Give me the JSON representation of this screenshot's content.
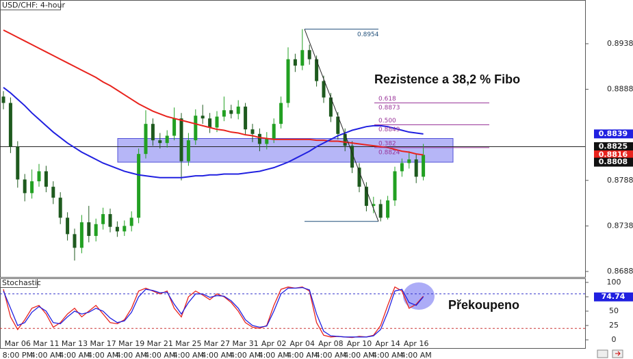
{
  "chart_data": [
    {
      "type": "candlestick",
      "title": "USD/CHF: 4-hour",
      "open": [
        0.888,
        0.8873,
        0.8825,
        0.8789,
        0.8774,
        0.8787,
        0.8798,
        0.8781,
        0.8769,
        0.8747,
        0.8729,
        0.8714,
        0.8742,
        0.8727,
        0.874,
        0.8751,
        0.8737,
        0.8732,
        0.8738,
        0.8747,
        0.8817,
        0.885,
        0.8832,
        0.8829,
        0.8837,
        0.8856,
        0.8809,
        0.8832,
        0.8859,
        0.8856,
        0.8846,
        0.8858,
        0.8865,
        0.8861,
        0.8869,
        0.8844,
        0.8839,
        0.8828,
        0.8834,
        0.885,
        0.8873,
        0.8921,
        0.8914,
        0.8931,
        0.8921,
        0.8897,
        0.8879,
        0.8858,
        0.8839,
        0.8826,
        0.8802,
        0.8781,
        0.876,
        0.8762,
        0.8747,
        0.8766,
        0.8798,
        0.8807,
        0.8811,
        0.8792
      ],
      "high": [
        0.8886,
        0.8879,
        0.8831,
        0.8795,
        0.88,
        0.8806,
        0.8804,
        0.8787,
        0.8775,
        0.8753,
        0.8735,
        0.875,
        0.876,
        0.8746,
        0.8758,
        0.8757,
        0.8743,
        0.8744,
        0.8754,
        0.8823,
        0.8865,
        0.8856,
        0.884,
        0.8843,
        0.8868,
        0.8862,
        0.884,
        0.8866,
        0.8871,
        0.8862,
        0.8864,
        0.888,
        0.8871,
        0.8876,
        0.8873,
        0.885,
        0.8845,
        0.8841,
        0.8856,
        0.888,
        0.8934,
        0.8927,
        0.8954,
        0.8937,
        0.8925,
        0.8903,
        0.8884,
        0.8863,
        0.8845,
        0.8831,
        0.8807,
        0.8786,
        0.877,
        0.8767,
        0.8771,
        0.8803,
        0.8812,
        0.882,
        0.8817,
        0.8828
      ],
      "low": [
        0.8866,
        0.8818,
        0.878,
        0.8765,
        0.8768,
        0.8781,
        0.8775,
        0.8762,
        0.874,
        0.8722,
        0.87,
        0.8708,
        0.872,
        0.8721,
        0.8734,
        0.8731,
        0.8726,
        0.8727,
        0.8732,
        0.8741,
        0.8812,
        0.8826,
        0.8823,
        0.8824,
        0.8832,
        0.8788,
        0.8804,
        0.8827,
        0.885,
        0.884,
        0.8841,
        0.8853,
        0.8856,
        0.8855,
        0.8838,
        0.883,
        0.882,
        0.8822,
        0.8829,
        0.8845,
        0.8868,
        0.8907,
        0.8909,
        0.8915,
        0.8891,
        0.8873,
        0.8852,
        0.8833,
        0.882,
        0.8796,
        0.8775,
        0.8754,
        0.8752,
        0.8743,
        0.8745,
        0.876,
        0.8792,
        0.8801,
        0.8785,
        0.8788
      ],
      "close": [
        0.8873,
        0.8825,
        0.8789,
        0.8774,
        0.8787,
        0.8798,
        0.8781,
        0.8769,
        0.8747,
        0.8729,
        0.8714,
        0.8742,
        0.8727,
        0.874,
        0.8751,
        0.8737,
        0.8732,
        0.8738,
        0.8747,
        0.8817,
        0.885,
        0.8832,
        0.8829,
        0.8837,
        0.8856,
        0.8809,
        0.8832,
        0.8859,
        0.8856,
        0.8846,
        0.8858,
        0.8865,
        0.8861,
        0.8869,
        0.8844,
        0.8839,
        0.8828,
        0.8834,
        0.885,
        0.8873,
        0.8921,
        0.8914,
        0.8931,
        0.8921,
        0.8897,
        0.8879,
        0.8858,
        0.8839,
        0.8826,
        0.8802,
        0.8781,
        0.876,
        0.8762,
        0.8747,
        0.8766,
        0.8798,
        0.8807,
        0.8811,
        0.8792,
        0.8816
      ],
      "up_color": "#22a022",
      "down_color": "#1e5a1e",
      "ylim": [
        0.8682,
        0.8986
      ],
      "yticks": [
        0.8938,
        0.8888,
        0.8788,
        0.8738,
        0.8688
      ],
      "moving_averages": [
        {
          "color": "#e8231d",
          "values": [
            0.8953,
            0.8949,
            0.8945,
            0.8941,
            0.8937,
            0.8933,
            0.8929,
            0.8925,
            0.8921,
            0.8917,
            0.8913,
            0.8909,
            0.8905,
            0.8901,
            0.8896,
            0.8892,
            0.8887,
            0.8882,
            0.8877,
            0.8872,
            0.8868,
            0.8864,
            0.8861,
            0.8858,
            0.8856,
            0.8854,
            0.8852,
            0.885,
            0.8848,
            0.8846,
            0.8844,
            0.8843,
            0.8841,
            0.884,
            0.8838,
            0.8837,
            0.8835,
            0.8834,
            0.8833,
            0.8833,
            0.8833,
            0.8833,
            0.8833,
            0.8833,
            0.8832,
            0.8832,
            0.8831,
            0.8831,
            0.883,
            0.8829,
            0.8828,
            0.8827,
            0.8826,
            0.8825,
            0.8824,
            0.8822,
            0.882,
            0.8819,
            0.8817,
            0.8816
          ]
        },
        {
          "color": "#2020e0",
          "values": [
            0.889,
            0.8884,
            0.8877,
            0.887,
            0.8862,
            0.8855,
            0.8848,
            0.8841,
            0.8835,
            0.8829,
            0.8824,
            0.8819,
            0.8815,
            0.8811,
            0.8807,
            0.8804,
            0.8801,
            0.8798,
            0.8796,
            0.8794,
            0.8793,
            0.8792,
            0.8791,
            0.8791,
            0.8791,
            0.8791,
            0.8792,
            0.8793,
            0.8793,
            0.8794,
            0.8794,
            0.8795,
            0.8795,
            0.8795,
            0.8796,
            0.8797,
            0.8798,
            0.88,
            0.8802,
            0.8805,
            0.8808,
            0.8812,
            0.8816,
            0.882,
            0.8825,
            0.8829,
            0.8833,
            0.8837,
            0.884,
            0.8843,
            0.8845,
            0.8847,
            0.8848,
            0.8848,
            0.8847,
            0.8845,
            0.8843,
            0.8841,
            0.884,
            0.8839
          ]
        }
      ],
      "hline": 0.8825,
      "zone": [
        0.8808,
        0.8834
      ],
      "fibonacci": {
        "high": 0.8954,
        "low": 0.8743,
        "color": "#993399",
        "levels": [
          {
            "ratio": 0.618,
            "price": 0.8873
          },
          {
            "ratio": {
              "value": 0.5,
              "label": "0.500"
            },
            "price": 0.8849
          },
          {
            "ratio": 0.382,
            "price": 0.8824
          }
        ]
      },
      "annotation": "Rezistence a 38,2 % Fibo",
      "dates": [
        "Mar 06",
        "Mar 11",
        "Mar 13",
        "Mar 17",
        "Mar 19",
        "Mar 21",
        "Mar 25",
        "Mar 27",
        "Mar 31",
        "Apr 02",
        "Apr 04",
        "Apr 08",
        "Apr 10",
        "Apr 14",
        "Apr 16"
      ],
      "times": [
        "8:00 PM",
        "4:00 AM",
        "4:00 AM",
        "4:00 AM",
        "4:00 AM",
        "4:00 AM",
        "4:00 AM",
        "4:00 AM",
        "4:00 AM",
        "4:00 AM",
        "4:00 AM",
        "4:00 AM",
        "4:00 AM",
        "4:00 AM",
        "4:00 AM"
      ]
    },
    {
      "type": "line",
      "title": "Stochastic",
      "series": [
        {
          "color": "#e8231d",
          "values": [
            88,
            40,
            18,
            35,
            55,
            60,
            45,
            22,
            30,
            45,
            55,
            40,
            50,
            60,
            45,
            30,
            28,
            35,
            55,
            85,
            90,
            85,
            80,
            85,
            55,
            40,
            75,
            85,
            78,
            70,
            80,
            75,
            65,
            50,
            30,
            22,
            20,
            25,
            60,
            88,
            92,
            90,
            92,
            85,
            30,
            8,
            5,
            6,
            5,
            4,
            6,
            5,
            8,
            25,
            60,
            92,
            85,
            55,
            62,
            76
          ]
        },
        {
          "color": "#2020e0",
          "values": [
            85,
            55,
            25,
            30,
            48,
            58,
            50,
            30,
            28,
            40,
            50,
            45,
            48,
            55,
            50,
            38,
            30,
            33,
            48,
            75,
            88,
            86,
            82,
            83,
            62,
            45,
            65,
            80,
            80,
            74,
            77,
            76,
            68,
            55,
            35,
            25,
            22,
            24,
            50,
            80,
            90,
            90,
            91,
            87,
            45,
            15,
            7,
            6,
            5,
            5,
            5,
            5,
            7,
            18,
            48,
            85,
            88,
            65,
            60,
            74.74
          ]
        }
      ],
      "ylim": [
        0,
        100
      ],
      "yticks": [
        100,
        75,
        50,
        25,
        0
      ],
      "levels": [
        {
          "value": 80,
          "color": "#3333cc"
        },
        {
          "value": 20,
          "color": "#cc3333"
        }
      ],
      "annotation": "Překoupeno"
    }
  ]
}
